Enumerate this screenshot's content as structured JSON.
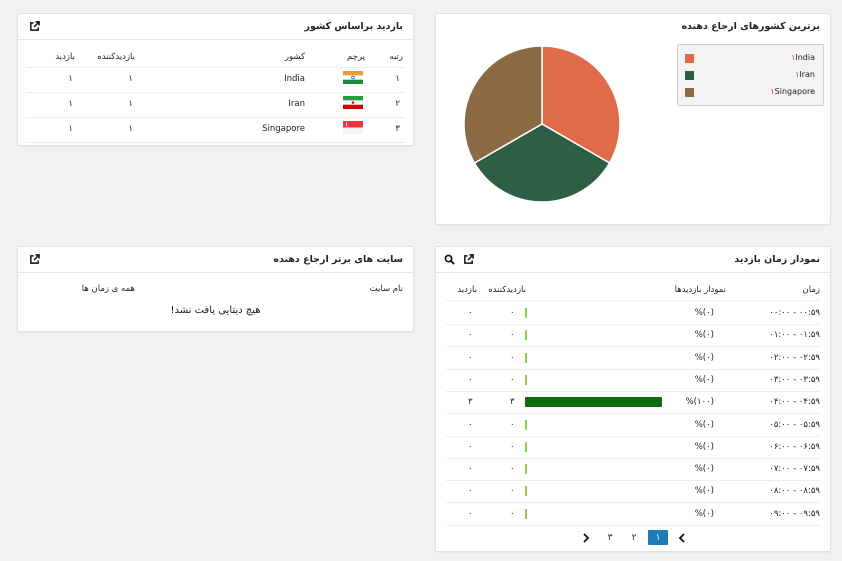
{
  "country_visits": {
    "title": "بازدید براساس کشور",
    "columns": {
      "rank": "رتبه",
      "flag": "پرچم",
      "country": "کشور",
      "visitors": "بازدیدکننده",
      "visits": "بازدید"
    },
    "rows": [
      {
        "rank": "۱",
        "country": "India",
        "visitors": "۱",
        "visits": "۱",
        "flag": "india"
      },
      {
        "rank": "۲",
        "country": "Iran",
        "visitors": "۱",
        "visits": "۱",
        "flag": "iran"
      },
      {
        "rank": "۳",
        "country": "Singapore",
        "visitors": "۱",
        "visits": "۱",
        "flag": "singapore"
      }
    ]
  },
  "top_countries": {
    "title": "برترین کشورهای ارجاع دهنده",
    "legend": [
      {
        "label": "India",
        "num": "۱",
        "color": "#e06b48"
      },
      {
        "label": "Iran",
        "num": "۱",
        "color": "#2e5e45"
      },
      {
        "label": "Singapore",
        "num": "۱",
        "color": "#8b6a44"
      }
    ]
  },
  "chart_data": {
    "type": "pie",
    "categories": [
      "India",
      "Iran",
      "Singapore"
    ],
    "values": [
      1,
      1,
      1
    ],
    "colors": [
      "#e06b48",
      "#2e5e45",
      "#8b6a44"
    ],
    "title": "برترین کشورهای ارجاع دهنده",
    "legend_position": "top-right"
  },
  "top_sites": {
    "title": "سایت های برتر ارجاع دهنده",
    "col_site": "نام سایت",
    "col_all": "همه ی زمان ها",
    "empty": "هیچ دیتایی یافت نشد!"
  },
  "time_chart": {
    "title": "نمودار زمان بازدید",
    "columns": {
      "time": "زمان",
      "chart": "نمودار بازدیدها",
      "visitors": "بازدیدکننده",
      "visits": "بازدید"
    },
    "rows": [
      {
        "time": "۰۰:۰۰ - ۰۰:۵۹",
        "pct": "%(۰)",
        "visitors": "۰",
        "visits": "۰",
        "share": 0
      },
      {
        "time": "۰۱:۰۰ - ۰۱:۵۹",
        "pct": "%(۰)",
        "visitors": "۰",
        "visits": "۰",
        "share": 0
      },
      {
        "time": "۰۲:۰۰ - ۰۲:۵۹",
        "pct": "%(۰)",
        "visitors": "۰",
        "visits": "۰",
        "share": 0
      },
      {
        "time": "۰۳:۰۰ - ۰۳:۵۹",
        "pct": "%(۰)",
        "visitors": "۰",
        "visits": "۰",
        "share": 0
      },
      {
        "time": "۰۴:۰۰ - ۰۴:۵۹",
        "pct": "%(۱۰۰)",
        "visitors": "۳",
        "visits": "۳",
        "share": 1
      },
      {
        "time": "۰۵:۰۰ - ۰۵:۵۹",
        "pct": "%(۰)",
        "visitors": "۰",
        "visits": "۰",
        "share": 0
      },
      {
        "time": "۰۶:۰۰ - ۰۶:۵۹",
        "pct": "%(۰)",
        "visitors": "۰",
        "visits": "۰",
        "share": 0
      },
      {
        "time": "۰۷:۰۰ - ۰۷:۵۹",
        "pct": "%(۰)",
        "visitors": "۰",
        "visits": "۰",
        "share": 0
      },
      {
        "time": "۰۸:۰۰ - ۰۸:۵۹",
        "pct": "%(۰)",
        "visitors": "۰",
        "visits": "۰",
        "share": 0
      },
      {
        "time": "۰۹:۰۰ - ۰۹:۵۹",
        "pct": "%(۰)",
        "visitors": "۰",
        "visits": "۰",
        "share": 0
      }
    ],
    "pager": {
      "pages": [
        "۱",
        "۲",
        "۳"
      ],
      "active": "۱"
    },
    "colors": {
      "empty_bar": "#8bd14a",
      "full_bar": "#0a6b10"
    }
  }
}
